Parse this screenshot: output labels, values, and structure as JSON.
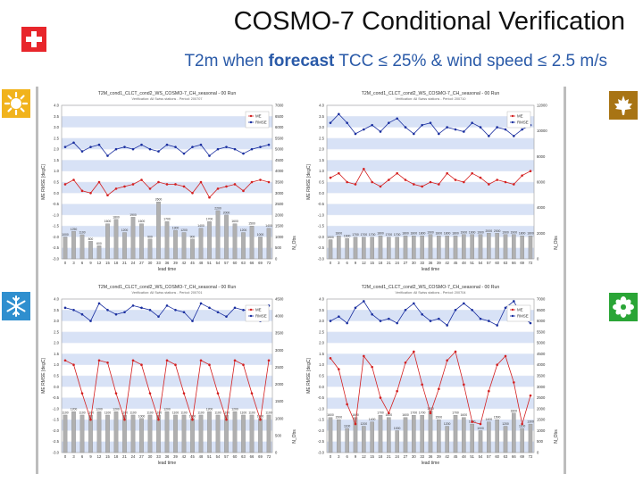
{
  "header": {
    "title": "COSMO-7  Conditional Verification",
    "subtitle_part1": "T2m when ",
    "subtitle_bold": "forecast",
    "subtitle_part2": " TCC ≤ 25% & wind speed ≤ 2.5 m/s"
  },
  "icons": [
    "swiss-flag-icon",
    "sun-icon",
    "maple-leaf-icon",
    "snowflake-icon",
    "flower-icon"
  ],
  "colors": {
    "me": "#d42020",
    "rmse": "#1a2fa0",
    "subtitle": "#2a5aa8",
    "band": "#d8e2f6",
    "bar": "#b0b0b0"
  },
  "chart_data": [
    {
      "type": "line",
      "title": "T2M_cond1_CLCT_cond2_WS_COSMO-7_CH_seasonal - 00 Run",
      "subtitle": "Verification: All Swiss stations - Period: 200707",
      "xlabel": "lead time",
      "ylabel": "ME RMSE [degC]",
      "y2label": "N_Obs",
      "ylim": [
        -3,
        4
      ],
      "y2lim": [
        0,
        7000
      ],
      "x": [
        0,
        3,
        6,
        9,
        12,
        15,
        18,
        21,
        24,
        27,
        30,
        33,
        36,
        39,
        42,
        45,
        48,
        51,
        54,
        57,
        60,
        63,
        66,
        69,
        72
      ],
      "x_ticks": [
        0,
        3,
        6,
        9,
        12,
        15,
        18,
        21,
        24,
        27,
        30,
        33,
        36,
        39,
        42,
        45,
        48,
        51,
        54,
        57,
        60,
        63,
        66,
        69,
        72
      ],
      "y_ticks": [
        "4.0",
        "3.5",
        "3.0",
        "2.5",
        "2.0",
        "1.5",
        "1.0",
        "0.5",
        "0.0",
        "-0.5",
        "-1.0",
        "-1.5",
        "-2.0",
        "-2.5",
        "-3.0"
      ],
      "y2_ticks": [
        "7000",
        "6500",
        "6000",
        "5500",
        "5000",
        "4500",
        "4000",
        "3500",
        "3000",
        "2500",
        "2000",
        "1500",
        "1000",
        "500",
        "0"
      ],
      "legend": [
        "ME",
        "RMSE"
      ],
      "series": [
        {
          "name": "RMSE",
          "values": [
            2.1,
            2.3,
            1.9,
            2.1,
            2.2,
            1.7,
            2.0,
            2.1,
            2.0,
            2.2,
            2.0,
            1.9,
            2.2,
            2.1,
            1.8,
            2.1,
            2.2,
            1.7,
            2.0,
            2.1,
            2.0,
            1.8,
            2.0,
            2.1,
            2.2
          ]
        },
        {
          "name": "ME",
          "values": [
            0.4,
            0.6,
            0.1,
            0.0,
            0.5,
            -0.1,
            0.2,
            0.3,
            0.4,
            0.6,
            0.2,
            0.5,
            0.4,
            0.4,
            0.3,
            0.0,
            0.5,
            -0.2,
            0.2,
            0.3,
            0.4,
            0.1,
            0.5,
            0.6,
            0.5
          ]
        },
        {
          "name": "N_Obs",
          "values": [
            1000,
            1250,
            1100,
            800,
            600,
            1600,
            1800,
            1200,
            1900,
            1600,
            900,
            2600,
            1700,
            1300,
            1200,
            900,
            1400,
            1700,
            2200,
            2000,
            1600,
            1200,
            1500,
            1000,
            1400
          ]
        }
      ]
    },
    {
      "type": "line",
      "title": "T2M_cond1_CLCT_cond2_WS_COSMO-7_CH_seasonal - 00 Run",
      "subtitle": "Verification: All Swiss stations - Period: 200710",
      "xlabel": "lead time",
      "ylabel": "ME RMSE [degC]",
      "y2label": "N_Obs",
      "ylim": [
        -3,
        4
      ],
      "y2lim": [
        0,
        12000
      ],
      "x": [
        0,
        3,
        6,
        9,
        12,
        15,
        18,
        21,
        24,
        27,
        30,
        33,
        36,
        39,
        42,
        45,
        48,
        51,
        54,
        57,
        60,
        63,
        66,
        69,
        72
      ],
      "x_ticks": [
        0,
        3,
        6,
        9,
        12,
        15,
        18,
        21,
        24,
        27,
        30,
        33,
        36,
        39,
        42,
        45,
        48,
        51,
        54,
        57,
        60,
        63,
        66,
        69,
        72
      ],
      "y_ticks": [
        "4.0",
        "3.5",
        "3.0",
        "2.5",
        "2.0",
        "1.5",
        "1.0",
        "0.5",
        "0.0",
        "-0.5",
        "-1.0",
        "-1.5",
        "-2.0",
        "-2.5",
        "-3.0"
      ],
      "y2_ticks": [
        "12000",
        "10000",
        "8000",
        "6000",
        "4000",
        "2000",
        "0"
      ],
      "legend": [
        "ME",
        "RMSE"
      ],
      "series": [
        {
          "name": "RMSE",
          "values": [
            3.2,
            3.6,
            3.2,
            2.7,
            2.9,
            3.1,
            2.8,
            3.2,
            3.4,
            3.0,
            2.7,
            3.1,
            3.2,
            2.7,
            3.0,
            2.9,
            2.8,
            3.2,
            3.0,
            2.6,
            3.0,
            2.9,
            2.6,
            2.9,
            3.1
          ]
        },
        {
          "name": "ME",
          "values": [
            0.7,
            0.9,
            0.5,
            0.4,
            1.1,
            0.5,
            0.3,
            0.6,
            0.9,
            0.6,
            0.4,
            0.3,
            0.5,
            0.4,
            0.9,
            0.6,
            0.5,
            0.9,
            0.7,
            0.4,
            0.6,
            0.5,
            0.4,
            0.8,
            1.0
          ]
        },
        {
          "name": "N_Obs",
          "values": [
            1500,
            1800,
            1600,
            1700,
            1700,
            1700,
            1800,
            1700,
            1700,
            1800,
            1800,
            1800,
            1900,
            1800,
            1800,
            1800,
            1900,
            1900,
            1900,
            2000,
            2000,
            1900,
            1900,
            1800,
            1800
          ]
        }
      ]
    },
    {
      "type": "line",
      "title": "T2M_cond1_CLCT_cond2_WS_COSMO-7_CH_seasonal - 00 Run",
      "subtitle": "Verification: All Swiss stations - Period: 200701",
      "xlabel": "lead time",
      "ylabel": "ME RMSE [degC]",
      "y2label": "N_Obs",
      "ylim": [
        -3,
        4
      ],
      "y2lim": [
        0,
        4500
      ],
      "x": [
        0,
        3,
        6,
        9,
        12,
        15,
        18,
        21,
        24,
        27,
        30,
        33,
        36,
        39,
        42,
        45,
        48,
        51,
        54,
        57,
        60,
        63,
        66,
        69,
        72
      ],
      "x_ticks": [
        0,
        3,
        6,
        9,
        12,
        15,
        18,
        21,
        24,
        27,
        30,
        33,
        36,
        39,
        42,
        45,
        48,
        51,
        54,
        57,
        60,
        63,
        66,
        69,
        72
      ],
      "y_ticks": [
        "4.0",
        "3.5",
        "3.0",
        "2.5",
        "2.0",
        "1.5",
        "1.0",
        "0.5",
        "0.0",
        "-0.5",
        "-1.0",
        "-1.5",
        "-2.0",
        "-2.5",
        "-3.0"
      ],
      "y2_ticks": [
        "4500",
        "4000",
        "3500",
        "3000",
        "2500",
        "2000",
        "1500",
        "1000",
        "500",
        "0"
      ],
      "legend": [
        "ME",
        "RMSE"
      ],
      "series": [
        {
          "name": "RMSE",
          "values": [
            3.6,
            3.5,
            3.3,
            3.0,
            3.8,
            3.5,
            3.3,
            3.4,
            3.7,
            3.6,
            3.5,
            3.2,
            3.7,
            3.5,
            3.4,
            3.0,
            3.8,
            3.6,
            3.4,
            3.2,
            3.6,
            3.5,
            3.5,
            3.0,
            3.7
          ]
        },
        {
          "name": "ME",
          "values": [
            1.2,
            1.0,
            -0.3,
            -1.5,
            1.2,
            1.1,
            -0.3,
            -1.5,
            1.2,
            1.0,
            -0.3,
            -1.5,
            1.2,
            1.0,
            -0.3,
            -1.5,
            1.2,
            1.0,
            -0.3,
            -1.5,
            1.2,
            1.0,
            -0.3,
            -1.5,
            1.2
          ]
        },
        {
          "name": "N_Obs",
          "values": [
            1100,
            1200,
            1100,
            1100,
            1200,
            1100,
            1200,
            1100,
            1100,
            1000,
            1100,
            1100,
            1200,
            1100,
            1100,
            1000,
            1100,
            1200,
            1100,
            1100,
            1200,
            1100,
            1100,
            1000,
            1100
          ]
        }
      ]
    },
    {
      "type": "line",
      "title": "T2M_cond1_CLCT_cond2_WS_COSMO-7_CH_seasonal - 00 Run",
      "subtitle": "Verification: All Swiss stations - Period: 200704",
      "xlabel": "lead time",
      "ylabel": "ME RMSE [degC]",
      "y2label": "N_Obs",
      "ylim": [
        -3,
        4
      ],
      "y2lim": [
        0,
        7000
      ],
      "x": [
        0,
        3,
        6,
        9,
        12,
        15,
        18,
        21,
        24,
        27,
        30,
        33,
        36,
        39,
        42,
        45,
        48,
        51,
        54,
        57,
        60,
        63,
        66,
        69,
        72
      ],
      "x_ticks": [
        0,
        3,
        6,
        9,
        12,
        15,
        18,
        21,
        24,
        27,
        30,
        33,
        36,
        39,
        42,
        45,
        48,
        51,
        54,
        57,
        60,
        63,
        66,
        69,
        72
      ],
      "y_ticks": [
        "4.0",
        "3.5",
        "3.0",
        "2.5",
        "2.0",
        "1.5",
        "1.0",
        "0.5",
        "0.0",
        "-0.5",
        "-1.0",
        "-1.5",
        "-2.0",
        "-2.5",
        "-3.0"
      ],
      "y2_ticks": [
        "7000",
        "6500",
        "6000",
        "5500",
        "5000",
        "4500",
        "4000",
        "3500",
        "3000",
        "2500",
        "2000",
        "1500",
        "1000",
        "500",
        "0"
      ],
      "legend": [
        "ME",
        "RMSE"
      ],
      "series": [
        {
          "name": "RMSE",
          "values": [
            3.0,
            3.2,
            2.9,
            3.6,
            3.9,
            3.3,
            3.0,
            3.1,
            2.9,
            3.5,
            3.8,
            3.3,
            3.0,
            3.1,
            2.8,
            3.5,
            3.8,
            3.5,
            3.1,
            3.0,
            2.8,
            3.6,
            3.9,
            3.2,
            2.9
          ]
        },
        {
          "name": "ME",
          "values": [
            1.3,
            0.8,
            -0.8,
            -1.7,
            1.4,
            0.9,
            -0.5,
            -1.2,
            -0.2,
            1.1,
            1.6,
            0.1,
            -1.2,
            -0.1,
            1.2,
            1.6,
            0.1,
            -1.6,
            -1.7,
            -0.2,
            1.0,
            1.4,
            0.2,
            -1.7,
            -0.4
          ]
        },
        {
          "name": "N_Obs",
          "values": [
            1600,
            1500,
            1100,
            1600,
            1200,
            1400,
            1700,
            1600,
            1000,
            1600,
            1700,
            1700,
            1900,
            1500,
            1200,
            1700,
            1600,
            1300,
            1000,
            1400,
            1500,
            1200,
            1800,
            1100,
            1300
          ]
        }
      ]
    }
  ]
}
